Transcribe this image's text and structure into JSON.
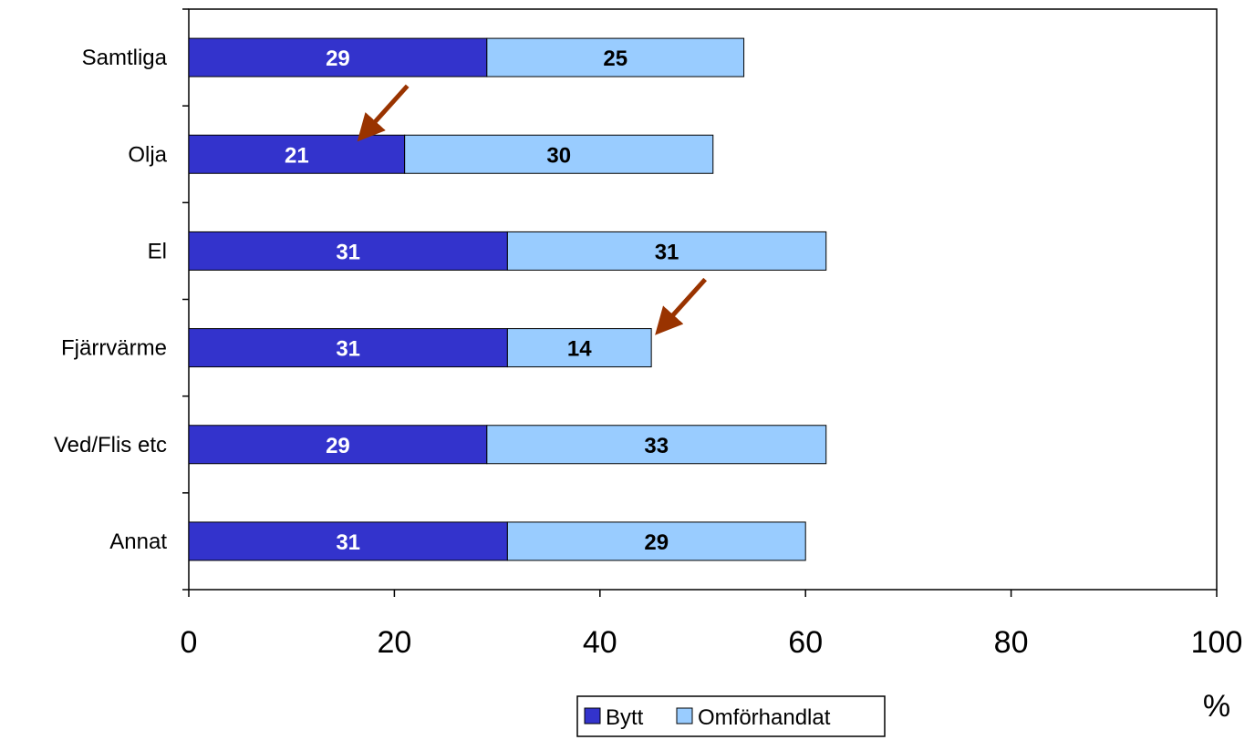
{
  "chart_data": {
    "type": "bar",
    "orientation": "horizontal",
    "stacked": true,
    "categories": [
      "Samtliga",
      "Olja",
      "El",
      "Fjärrvärme",
      "Ved/Flis etc",
      "Annat"
    ],
    "series": [
      {
        "name": "Bytt",
        "values": [
          29,
          21,
          31,
          31,
          29,
          31
        ],
        "color": "#3333cc",
        "label_color": "#ffffff"
      },
      {
        "name": "Omförhandlat",
        "values": [
          25,
          30,
          31,
          14,
          33,
          29
        ],
        "color": "#99ccff",
        "label_color": "#000000"
      }
    ],
    "xlim": [
      0,
      100
    ],
    "xticks": [
      0,
      20,
      40,
      60,
      80,
      100
    ],
    "xunit": "%",
    "grid": false,
    "legend_position": "bottom",
    "annotations": [
      {
        "type": "arrow",
        "category": "Olja",
        "points_to": "Bytt",
        "color": "#993300"
      },
      {
        "type": "arrow",
        "category": "Fjärrvärme",
        "points_to": "Omförhandlat",
        "color": "#993300"
      }
    ]
  }
}
